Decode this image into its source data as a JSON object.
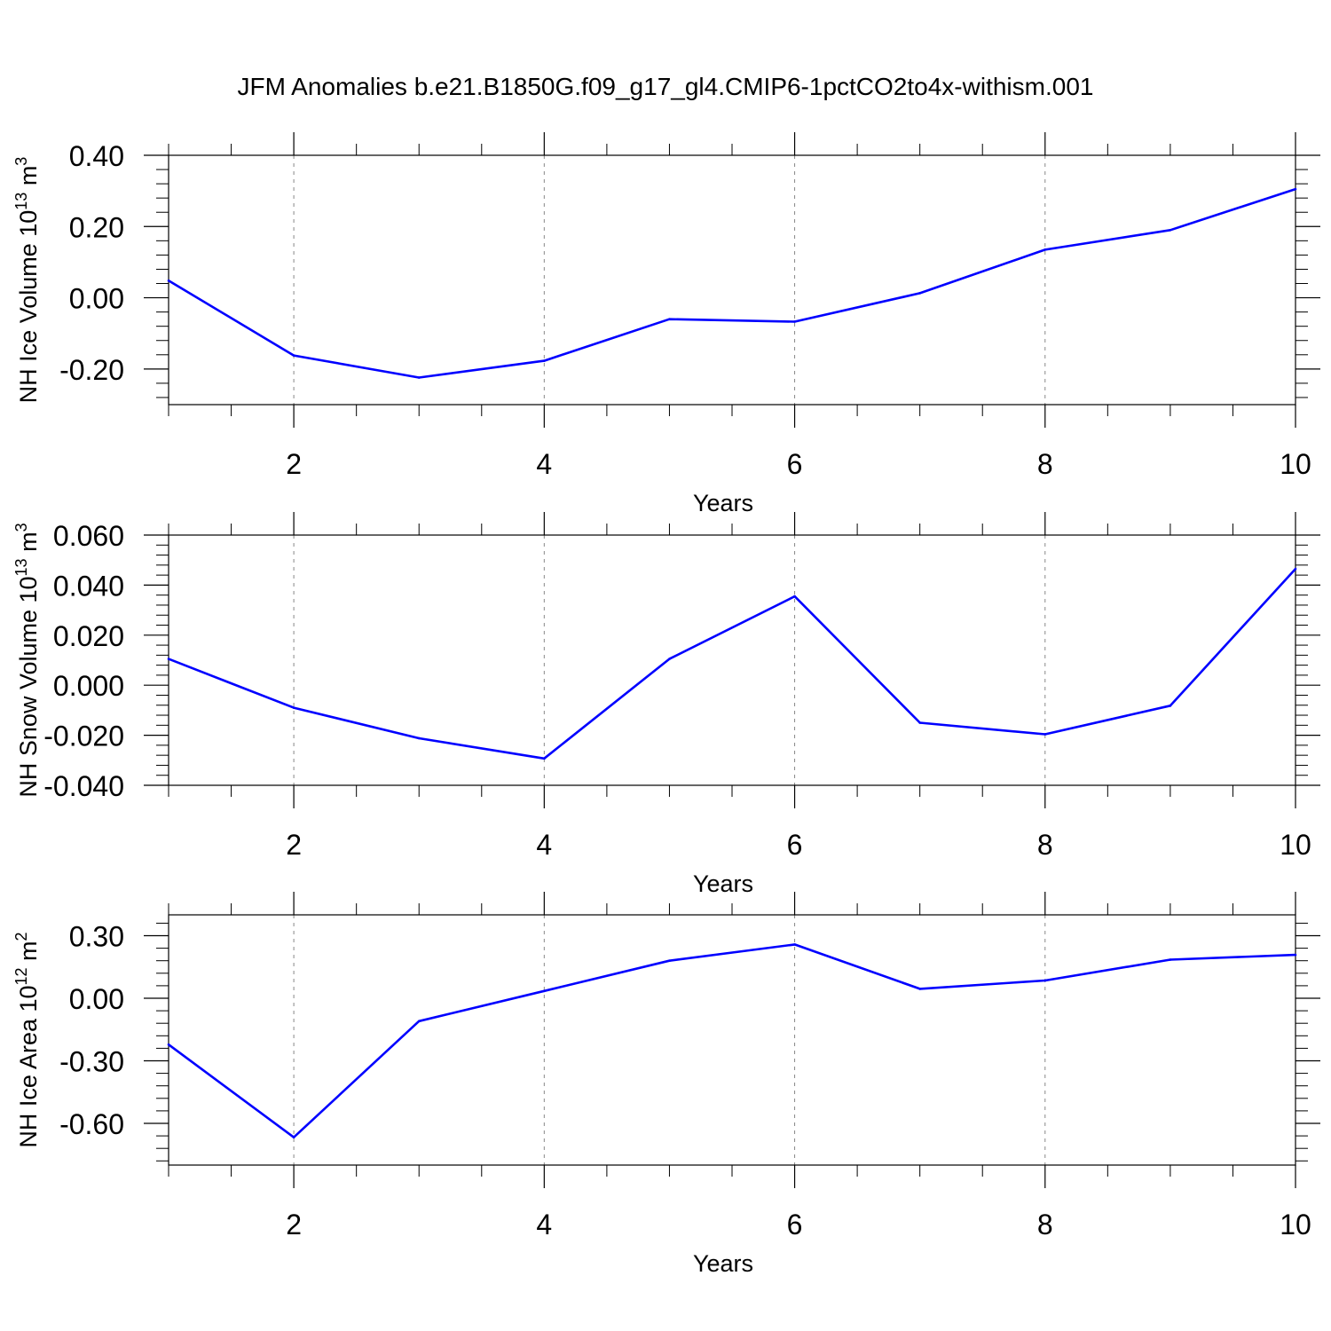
{
  "title": "JFM Anomalies b.e21.B1850G.f09_g17_gl4.CMIP6-1pctCO2to4x-withism.001",
  "line_color": "#0000ff",
  "chart_data": [
    {
      "type": "line",
      "title": "JFM Anomalies b.e21.B1850G.f09_g17_gl4.CMIP6-1pctCO2to4x-withism.001",
      "xlabel": "Years",
      "ylabel_main": "NH Ice Volume 10",
      "ylabel_sup": "13",
      "ylabel_unit": " m",
      "ylabel_unit_sup": "3",
      "xlim": [
        1,
        10
      ],
      "ylim": [
        -0.3,
        0.4
      ],
      "xticks": [
        2,
        4,
        6,
        8,
        10
      ],
      "xtick_labels": [
        "2",
        "4",
        "6",
        "8",
        "10"
      ],
      "yticks": [
        0.4,
        0.2,
        0.0,
        -0.2
      ],
      "ytick_labels": [
        "0.40",
        "0.20",
        "0.00",
        "-0.20"
      ],
      "series": [
        {
          "name": "NH Ice Volume",
          "x": [
            1,
            2,
            3,
            4,
            5,
            6,
            7,
            8,
            9,
            10
          ],
          "values": [
            0.048,
            -0.162,
            -0.224,
            -0.177,
            -0.06,
            -0.067,
            0.013,
            0.135,
            0.19,
            0.305
          ]
        }
      ]
    },
    {
      "type": "line",
      "xlabel": "Years",
      "ylabel_main": "NH Snow Volume 10",
      "ylabel_sup": "13",
      "ylabel_unit": " m",
      "ylabel_unit_sup": "3",
      "xlim": [
        1,
        10
      ],
      "ylim": [
        -0.04,
        0.06
      ],
      "xticks": [
        2,
        4,
        6,
        8,
        10
      ],
      "xtick_labels": [
        "2",
        "4",
        "6",
        "8",
        "10"
      ],
      "yticks": [
        0.06,
        0.04,
        0.02,
        0.0,
        -0.02,
        -0.04
      ],
      "ytick_labels": [
        "0.060",
        "0.040",
        "0.020",
        "0.000",
        "-0.020",
        "-0.040"
      ],
      "series": [
        {
          "name": "NH Snow Volume",
          "x": [
            1,
            2,
            3,
            4,
            5,
            6,
            7,
            8,
            9,
            10
          ],
          "values": [
            0.0105,
            -0.009,
            -0.0212,
            -0.0293,
            0.0105,
            0.0355,
            -0.015,
            -0.0196,
            -0.0082,
            0.0465
          ]
        }
      ]
    },
    {
      "type": "line",
      "xlabel": "Years",
      "ylabel_main": "NH Ice Area 10",
      "ylabel_sup": "12",
      "ylabel_unit": " m",
      "ylabel_unit_sup": "2",
      "xlim": [
        1,
        10
      ],
      "ylim": [
        -0.8,
        0.4
      ],
      "xticks": [
        2,
        4,
        6,
        8,
        10
      ],
      "xtick_labels": [
        "2",
        "4",
        "6",
        "8",
        "10"
      ],
      "yticks": [
        0.3,
        0.0,
        -0.3,
        -0.6
      ],
      "ytick_labels": [
        "0.30",
        "0.00",
        "-0.30",
        "-0.60"
      ],
      "series": [
        {
          "name": "NH Ice Area",
          "x": [
            1,
            2,
            3,
            4,
            5,
            6,
            7,
            8,
            9,
            10
          ],
          "values": [
            -0.222,
            -0.667,
            -0.11,
            0.035,
            0.18,
            0.258,
            0.045,
            0.085,
            0.185,
            0.208
          ]
        }
      ]
    }
  ]
}
